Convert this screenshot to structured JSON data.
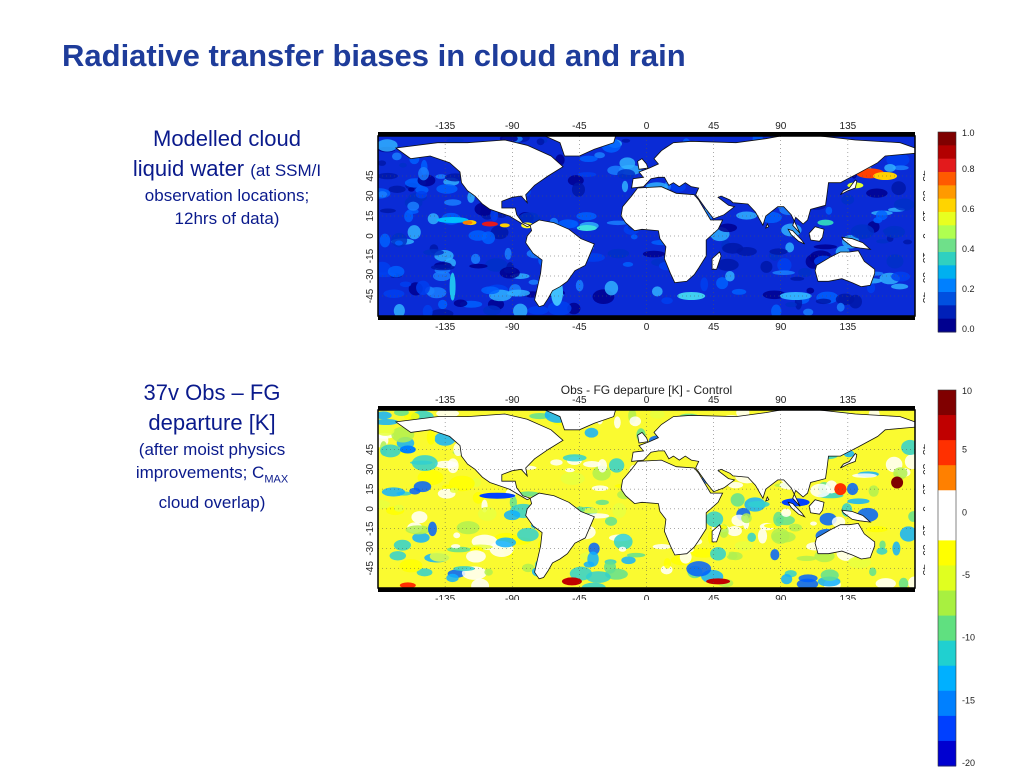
{
  "slide": {
    "title": "Radiative transfer biases in cloud and rain"
  },
  "panel1": {
    "caption_line1": "Modelled cloud",
    "caption_line2": "liquid water",
    "caption_paren": "(at SSM/I",
    "caption_line3": "observation locations;",
    "caption_line4": "12hrs of data)",
    "map_title": "",
    "lon_labels": [
      "-135",
      "-90",
      "-45",
      "0",
      "45",
      "90",
      "135"
    ],
    "lat_labels": [
      "45",
      "30",
      "15",
      "0",
      "-15",
      "-30",
      "-45"
    ],
    "colorbar": {
      "ticks": [
        "1.0",
        "0.8",
        "0.6",
        "0.4",
        "0.2",
        "0.0"
      ],
      "colors": [
        "#7f0000",
        "#b20000",
        "#e31a1c",
        "#ff5a00",
        "#ff9a00",
        "#ffd400",
        "#e8ff20",
        "#b0ff50",
        "#6fe08a",
        "#30d0c0",
        "#00b0f0",
        "#0080ff",
        "#0050e0",
        "#0020b8",
        "#00008f"
      ]
    }
  },
  "panel2": {
    "caption_line1": "37v Obs – FG",
    "caption_line2": "departure [K]",
    "caption_line3": "(after moist physics",
    "caption_line4_pre": "improvements; C",
    "caption_line4_sub": "MAX",
    "caption_line5": "cloud overlap)",
    "map_title": "Obs - FG departure [K] - Control",
    "lon_labels": [
      "-135",
      "-90",
      "-45",
      "0",
      "45",
      "90",
      "135"
    ],
    "lat_labels": [
      "45",
      "30",
      "15",
      "0",
      "-15",
      "-30",
      "-45"
    ],
    "colorbar": {
      "ticks": [
        "10",
        "5",
        "0",
        "-5",
        "-10",
        "-15",
        "-20"
      ],
      "colors": [
        "#800000",
        "#c00000",
        "#ff3000",
        "#ff8000",
        "#ffffff",
        "#ffffff",
        "#ffff00",
        "#e0ff20",
        "#a8f040",
        "#60e080",
        "#20d0d0",
        "#00b0ff",
        "#0080ff",
        "#0040ff",
        "#0000d0"
      ]
    }
  }
}
